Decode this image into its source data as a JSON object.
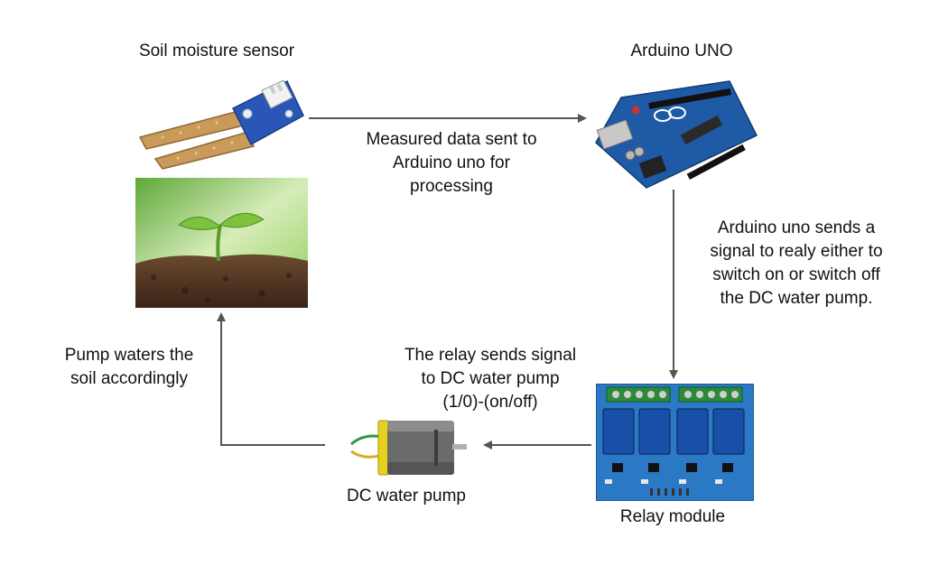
{
  "nodes": {
    "sensor": {
      "title": "Soil moisture sensor"
    },
    "arduino": {
      "title": "Arduino UNO"
    },
    "relay": {
      "title": "Relay module"
    },
    "pump": {
      "title": "DC water pump"
    }
  },
  "edges": {
    "sensor_to_arduino": [
      "Measured data sent to",
      "Arduino uno for",
      "processing"
    ],
    "arduino_to_relay": [
      "Arduino uno sends a",
      "signal to realy either to",
      "switch on or switch off",
      "the DC water pump."
    ],
    "relay_to_pump": [
      "The relay sends signal",
      "to DC water pump",
      "(1/0)-(on/off)"
    ],
    "pump_to_soil": [
      "Pump waters the",
      "soil accordingly"
    ]
  },
  "colors": {
    "arrow": "#555555",
    "arduino_board": "#1f5aa6",
    "relay_board": "#2b78c4",
    "sensor_pcb": "#2a56b8",
    "sensor_probe": "#c99a5a",
    "soil": "#4a3020",
    "sprout": "#7cc23c"
  }
}
